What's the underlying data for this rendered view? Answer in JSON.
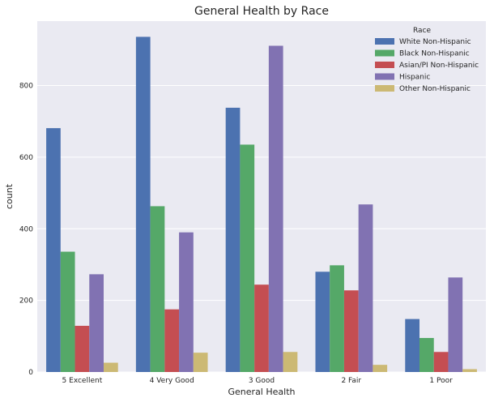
{
  "chart_data": {
    "type": "bar",
    "title": "General Health by Race",
    "xlabel": "General Health",
    "ylabel": "count",
    "categories": [
      "5 Excellent",
      "4 Very Good",
      "3 Good",
      "2 Fair",
      "1 Poor"
    ],
    "ylim": [
      0,
      980
    ],
    "yticks": [
      0,
      200,
      400,
      600,
      800
    ],
    "grid": true,
    "legend": {
      "title": "Race",
      "position": "top-right"
    },
    "series": [
      {
        "name": "White Non-Hispanic",
        "color": "#4C72B0",
        "values": [
          681,
          936,
          738,
          280,
          148
        ]
      },
      {
        "name": "Black Non-Hispanic",
        "color": "#55A868",
        "values": [
          336,
          463,
          635,
          298,
          95
        ]
      },
      {
        "name": "Asian/PI Non-Hispanic",
        "color": "#C44E52",
        "values": [
          129,
          175,
          244,
          228,
          56
        ]
      },
      {
        "name": "Hispanic",
        "color": "#8172B2",
        "values": [
          273,
          390,
          911,
          468,
          264
        ]
      },
      {
        "name": "Other Non-Hispanic",
        "color": "#CCB974",
        "values": [
          26,
          54,
          56,
          20,
          8
        ]
      }
    ]
  }
}
